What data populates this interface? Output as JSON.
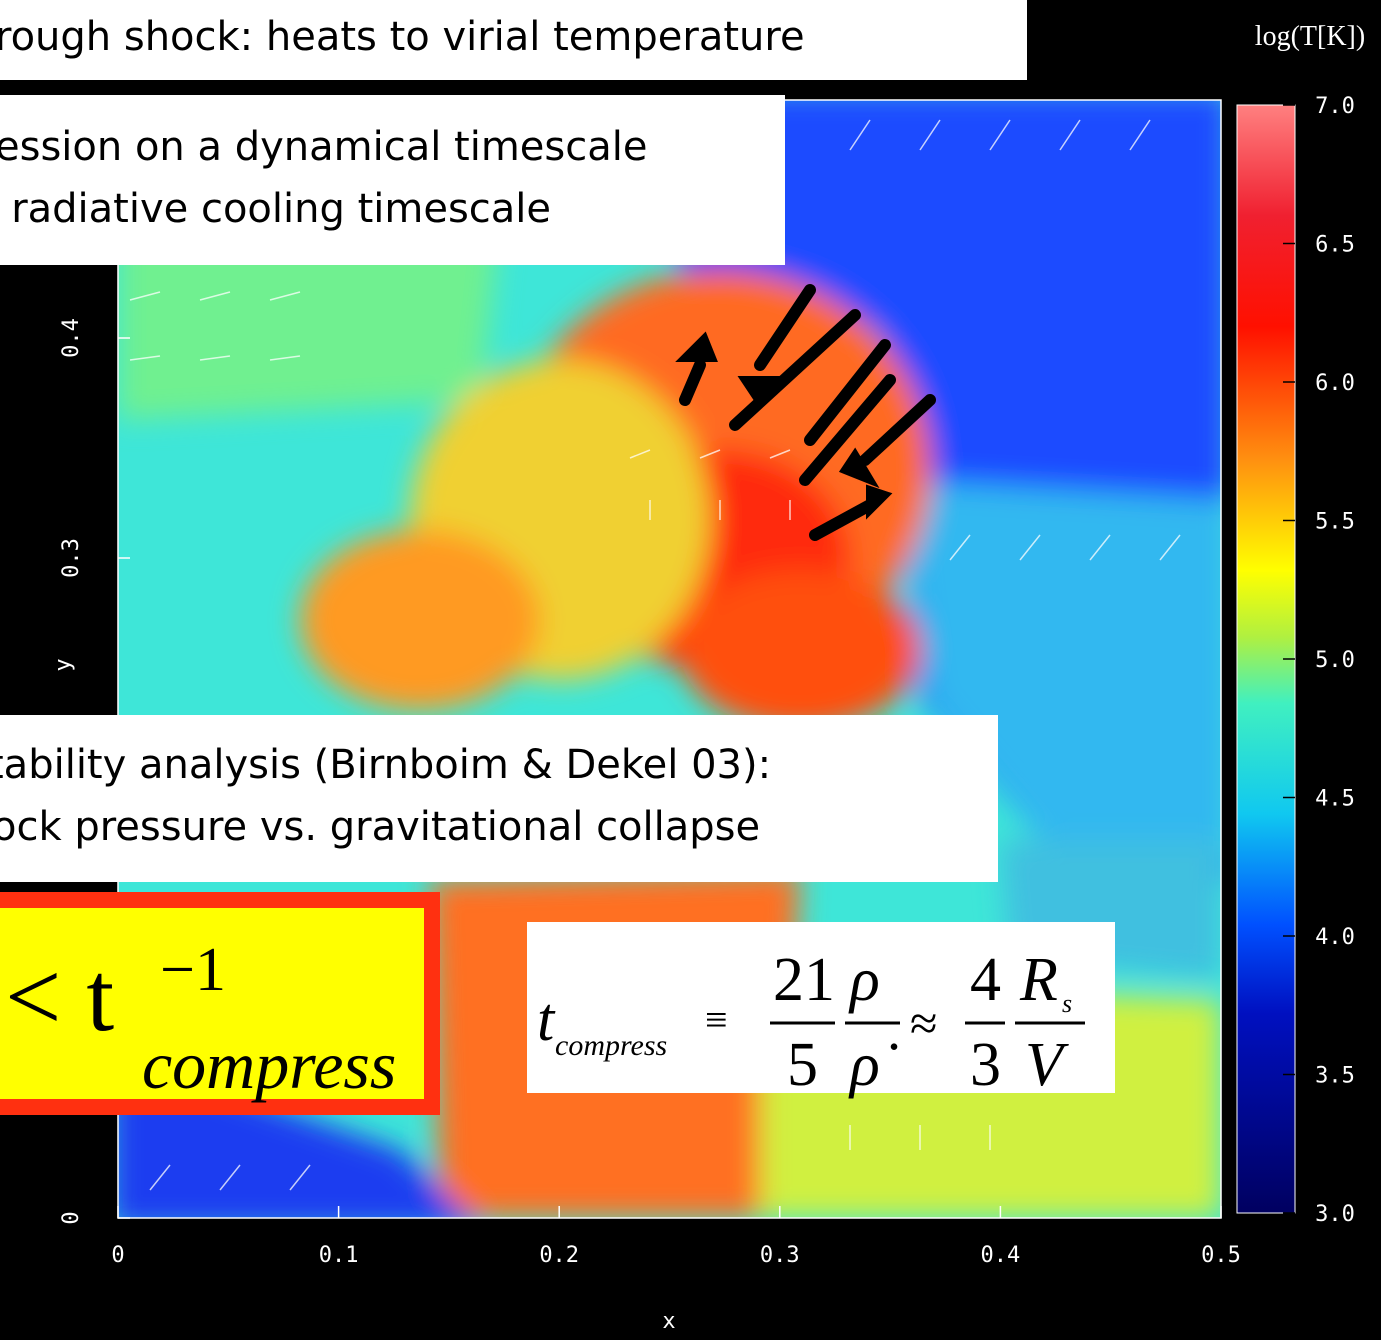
{
  "chart_data": {
    "type": "heatmap",
    "xlabel": "x",
    "ylabel": "y",
    "colorbar_label": "log(T[K])",
    "xlim": [
      0,
      0.5
    ],
    "ylim": [
      0,
      0.5
    ],
    "xticks": [
      0,
      0.1,
      0.2,
      0.3,
      0.4,
      0.5
    ],
    "yticks": [
      0,
      0.3,
      0.4
    ],
    "clim": [
      3,
      7
    ],
    "cticks": [
      {
        "value": 3,
        "label": "3.0"
      },
      {
        "value": 3.5,
        "label": "3.5"
      },
      {
        "value": 4,
        "label": "4.0"
      },
      {
        "value": 4.5,
        "label": "4.5"
      },
      {
        "value": 5,
        "label": "5.0"
      },
      {
        "value": 5.5,
        "label": "5.5"
      },
      {
        "value": 6,
        "label": "6.0"
      },
      {
        "value": 6.5,
        "label": "6.5"
      },
      {
        "value": 7,
        "label": "7.0"
      }
    ]
  },
  "annotations": {
    "top": "rough shock: heats to virial temperature",
    "timescale": [
      "ession on a dynamical timescale",
      ": radiative cooling timescale"
    ],
    "stability": [
      "tability analysis (Birnboim & Dekel 03):",
      "ock pressure vs. gravitational collapse"
    ],
    "criterion": {
      "lhs": "< t",
      "exp": "−1",
      "sub": "compress"
    },
    "formula": {
      "t": "t",
      "sub": "compress",
      "equiv": "≡",
      "n1": "21",
      "d1": "5",
      "n2": "ρ",
      "d2": "ρ̇",
      "approx": "≈",
      "n3": "4",
      "d3": "3",
      "n4": "R",
      "n4sub": "s",
      "d4": "V"
    }
  }
}
